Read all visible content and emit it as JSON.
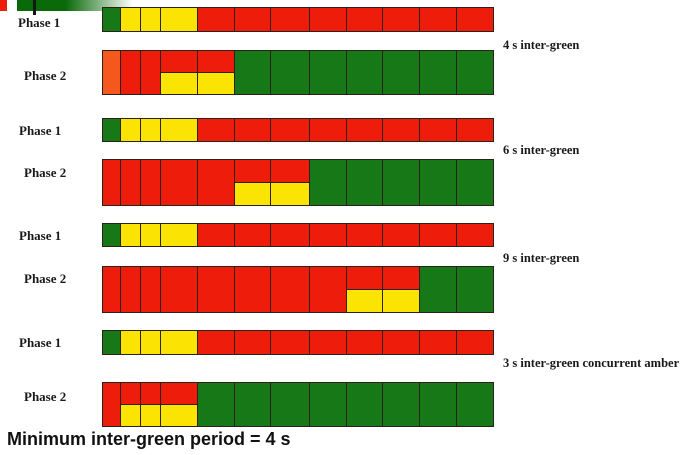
{
  "colors": {
    "red": "#ee1c0b",
    "green": "#177817",
    "amber": "#fbe303",
    "orange": "#f4581c"
  },
  "decoration": {
    "description": "cropped-green-bar-graphic"
  },
  "groups": [
    {
      "label": "4 s inter-green",
      "rows": [
        {
          "phase_label": "Phase 1",
          "cells": [
            "green",
            "amber",
            "amber",
            "amber",
            "red",
            "red",
            "red",
            "red",
            "red",
            "red",
            "red",
            "red"
          ]
        },
        {
          "phase_label": "Phase 2",
          "cells": [
            "orange",
            "red",
            "red",
            "red-amber",
            "red-amber",
            "green",
            "green",
            "green",
            "green",
            "green",
            "green",
            "green"
          ]
        }
      ]
    },
    {
      "label": "6 s inter-green",
      "rows": [
        {
          "phase_label": "Phase 1",
          "cells": [
            "green",
            "amber",
            "amber",
            "amber",
            "red",
            "red",
            "red",
            "red",
            "red",
            "red",
            "red",
            "red"
          ]
        },
        {
          "phase_label": "Phase 2",
          "cells": [
            "red",
            "red",
            "red",
            "red",
            "red",
            "red-amber",
            "red-amber",
            "green",
            "green",
            "green",
            "green",
            "green"
          ]
        }
      ]
    },
    {
      "label": "9 s inter-green",
      "rows": [
        {
          "phase_label": "Phase 1",
          "cells": [
            "green",
            "amber",
            "amber",
            "amber",
            "red",
            "red",
            "red",
            "red",
            "red",
            "red",
            "red",
            "red"
          ]
        },
        {
          "phase_label": "Phase 2",
          "cells": [
            "red",
            "red",
            "red",
            "red",
            "red",
            "red",
            "red",
            "red",
            "red-amber",
            "red-amber",
            "green",
            "green"
          ]
        }
      ]
    },
    {
      "label": "3 s inter-green concurrent amber",
      "rows": [
        {
          "phase_label": "Phase 1",
          "cells": [
            "green",
            "amber",
            "amber",
            "amber",
            "red",
            "red",
            "red",
            "red",
            "red",
            "red",
            "red",
            "red"
          ]
        },
        {
          "phase_label": "Phase 2",
          "cells": [
            "red",
            "red-amber",
            "red-amber",
            "red-amber",
            "green",
            "green",
            "green",
            "green",
            "green",
            "green",
            "green",
            "green"
          ]
        }
      ]
    }
  ],
  "footer": {
    "text": "Minimum inter-green period = 4 s"
  }
}
